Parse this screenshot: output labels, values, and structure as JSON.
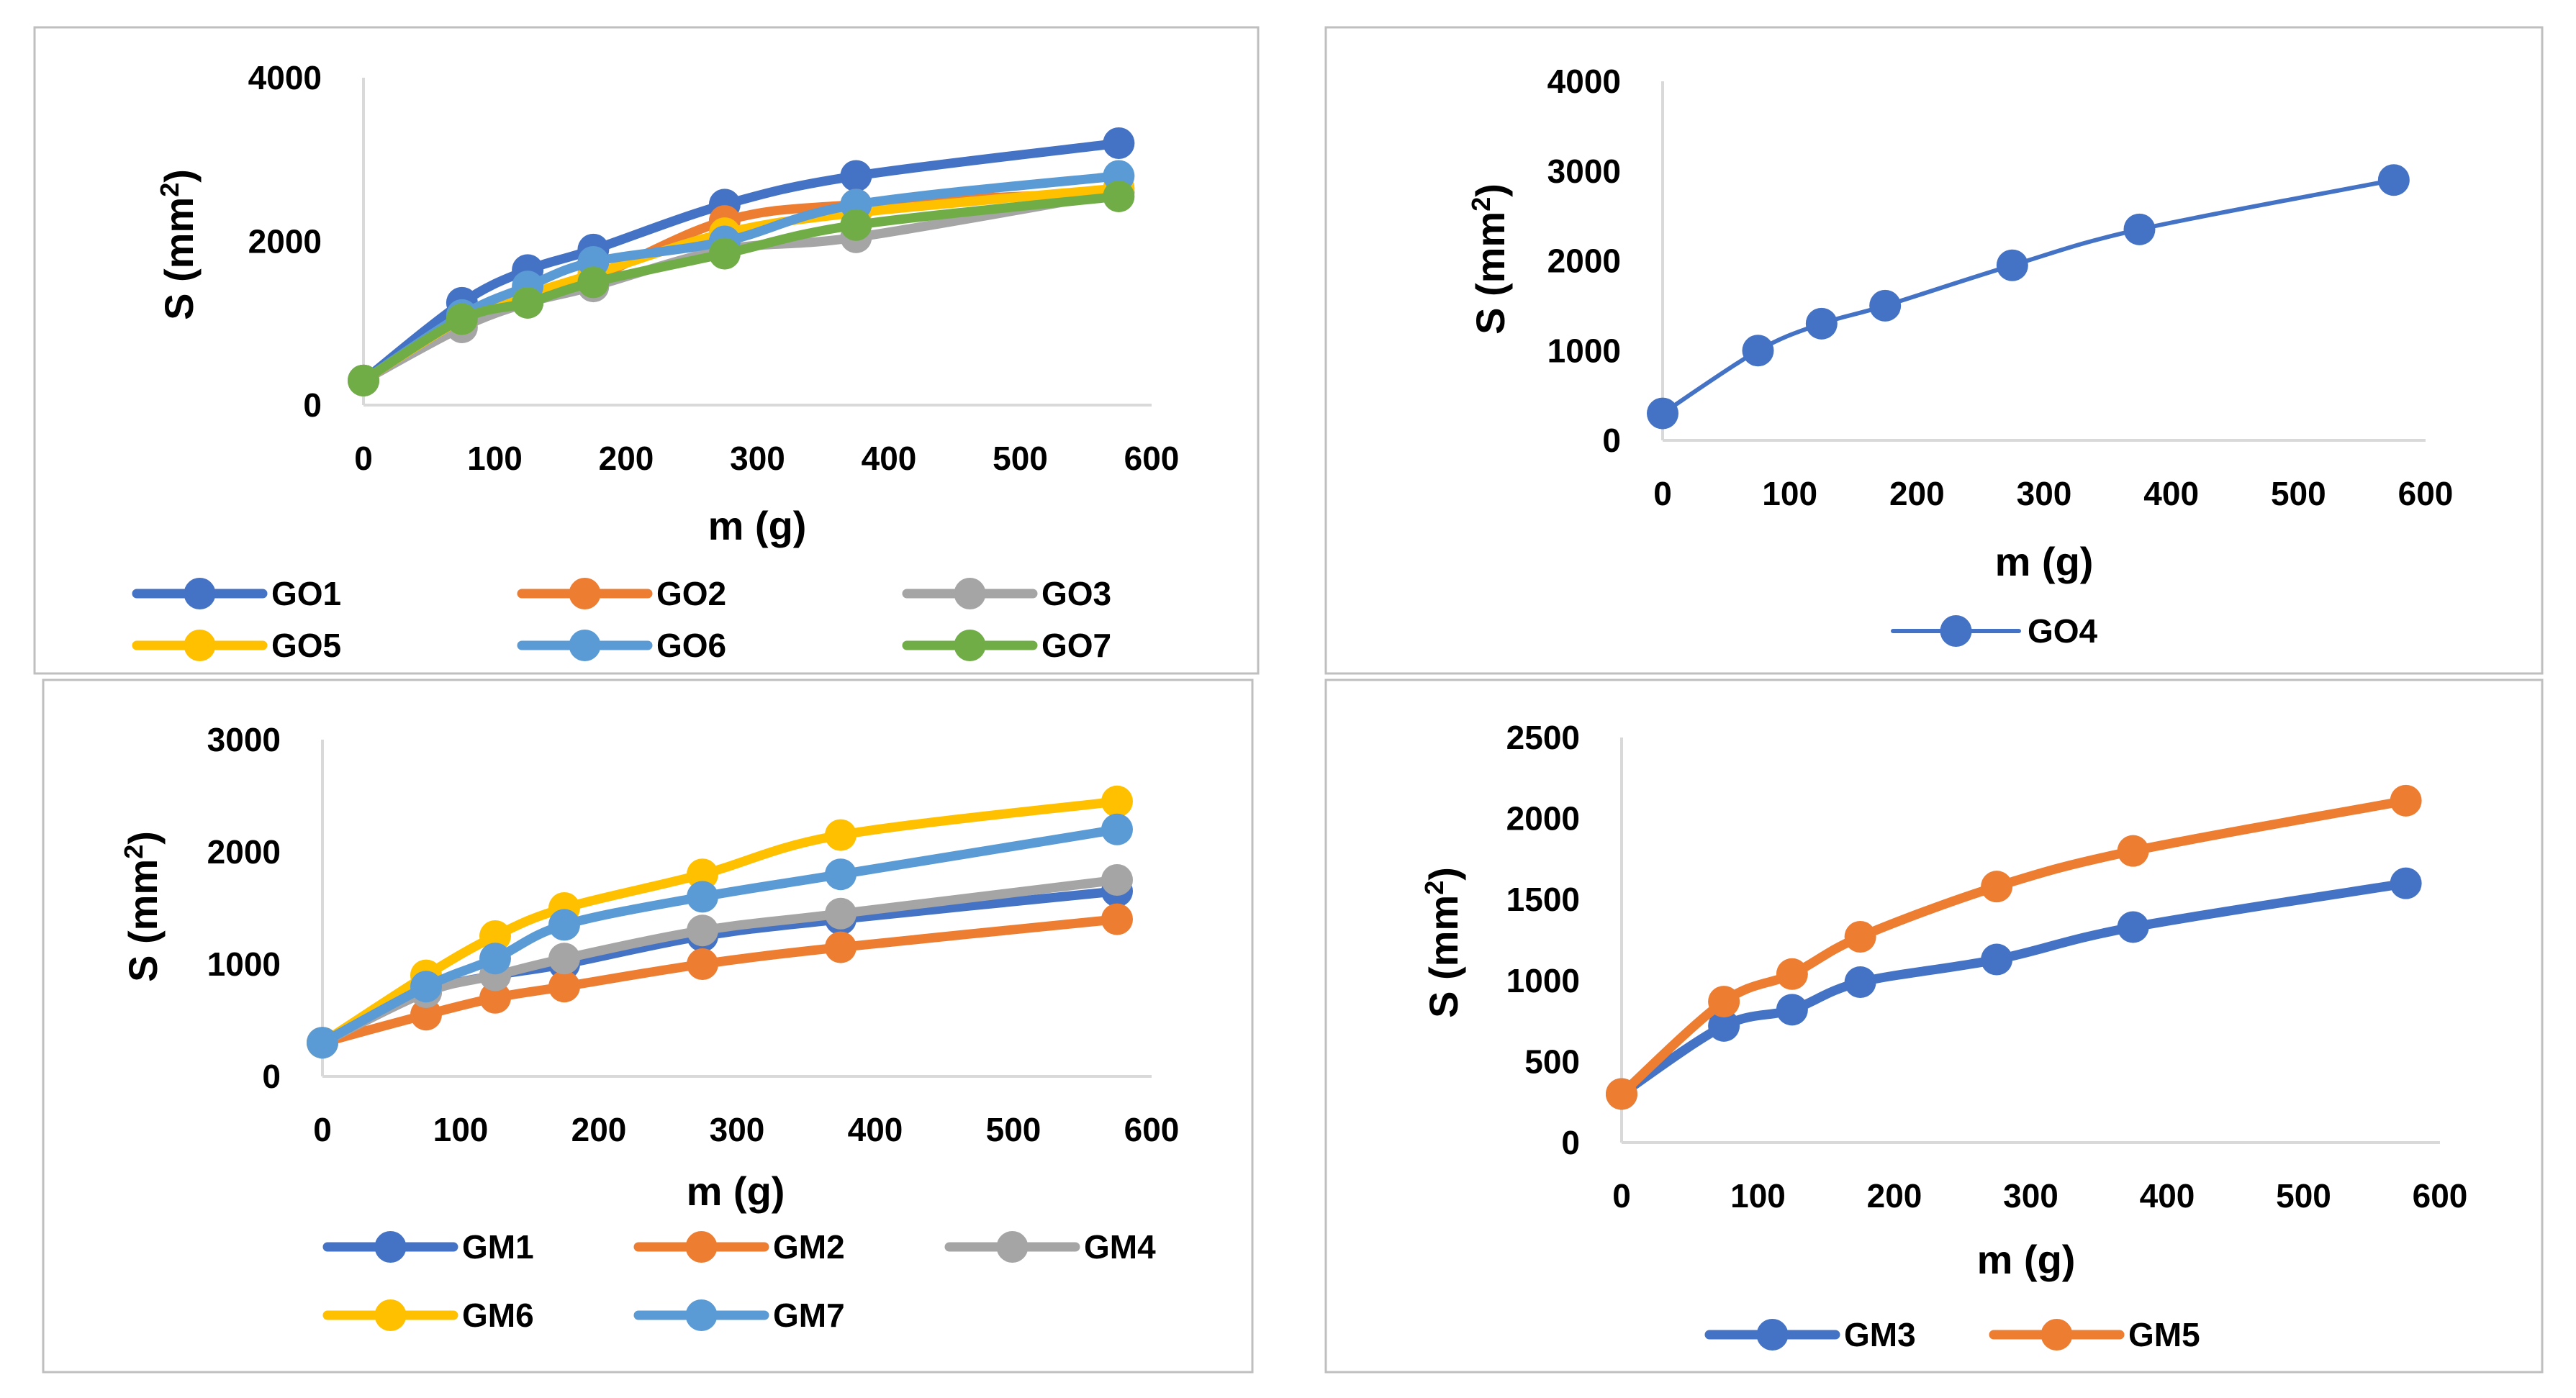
{
  "chart_data": [
    {
      "id": "A",
      "type": "line",
      "title": "",
      "xlabel": "m (g)",
      "ylabel_main": "S (mm",
      "ylabel_sup": "2",
      "ylabel_tail": ")",
      "xlim": [
        0,
        600
      ],
      "ylim": [
        0,
        4000
      ],
      "xticks": [
        0,
        100,
        200,
        300,
        400,
        500,
        600
      ],
      "yticks": [
        0,
        2000,
        4000
      ],
      "grid": false,
      "legend": "bottom",
      "series": [
        {
          "name": "GO1",
          "color": "#4472C4",
          "x": [
            0,
            75,
            125,
            175,
            275,
            375,
            575
          ],
          "y": [
            300,
            1250,
            1650,
            1900,
            2450,
            2800,
            3200
          ]
        },
        {
          "name": "GO2",
          "color": "#ED7D31",
          "x": [
            0,
            75,
            125,
            175,
            275,
            375,
            575
          ],
          "y": [
            300,
            1000,
            1300,
            1550,
            2250,
            2450,
            2600
          ]
        },
        {
          "name": "GO3",
          "color": "#A5A5A5",
          "x": [
            0,
            75,
            125,
            175,
            275,
            375,
            575
          ],
          "y": [
            300,
            950,
            1250,
            1450,
            1900,
            2050,
            2600
          ]
        },
        {
          "name": "GO5",
          "color": "#FFC000",
          "x": [
            0,
            75,
            125,
            175,
            275,
            375,
            575
          ],
          "y": [
            300,
            1050,
            1350,
            1600,
            2100,
            2350,
            2650
          ]
        },
        {
          "name": "GO6",
          "color": "#5B9BD5",
          "x": [
            0,
            75,
            125,
            175,
            275,
            375,
            575
          ],
          "y": [
            300,
            1100,
            1450,
            1750,
            2000,
            2450,
            2800
          ]
        },
        {
          "name": "GO7",
          "color": "#70AD47",
          "x": [
            0,
            75,
            125,
            175,
            275,
            375,
            575
          ],
          "y": [
            300,
            1050,
            1250,
            1500,
            1850,
            2200,
            2550
          ]
        }
      ]
    },
    {
      "id": "B",
      "type": "line",
      "title": "",
      "xlabel": "m (g)",
      "ylabel_main": "S (mm",
      "ylabel_sup": "2",
      "ylabel_tail": ")",
      "xlim": [
        0,
        600
      ],
      "ylim": [
        0,
        4000
      ],
      "xticks": [
        0,
        100,
        200,
        300,
        400,
        500,
        600
      ],
      "yticks": [
        0,
        1000,
        2000,
        3000,
        4000
      ],
      "grid": false,
      "legend": "bottom",
      "series": [
        {
          "name": "GO4",
          "color": "#4472C4",
          "thin": true,
          "x": [
            0,
            75,
            125,
            175,
            275,
            375,
            575
          ],
          "y": [
            300,
            1000,
            1300,
            1500,
            1950,
            2350,
            2900
          ]
        }
      ]
    },
    {
      "id": "C",
      "type": "line",
      "title": "",
      "xlabel": "m (g)",
      "ylabel_main": "S (mm",
      "ylabel_sup": "2",
      "ylabel_tail": ")",
      "xlim": [
        0,
        600
      ],
      "ylim": [
        0,
        3000
      ],
      "xticks": [
        0,
        100,
        200,
        300,
        400,
        500,
        600
      ],
      "yticks": [
        0,
        1000,
        2000,
        3000
      ],
      "grid": false,
      "legend": "bottom",
      "series": [
        {
          "name": "GM1",
          "color": "#4472C4",
          "x": [
            0,
            75,
            125,
            175,
            275,
            375,
            575
          ],
          "y": [
            300,
            750,
            900,
            1000,
            1250,
            1400,
            1650
          ]
        },
        {
          "name": "GM2",
          "color": "#ED7D31",
          "x": [
            0,
            75,
            125,
            175,
            275,
            375,
            575
          ],
          "y": [
            300,
            550,
            700,
            800,
            1000,
            1150,
            1400
          ]
        },
        {
          "name": "GM4",
          "color": "#A5A5A5",
          "x": [
            0,
            75,
            125,
            175,
            275,
            375,
            575
          ],
          "y": [
            300,
            750,
            900,
            1050,
            1300,
            1450,
            1750
          ]
        },
        {
          "name": "GM6",
          "color": "#FFC000",
          "x": [
            0,
            75,
            125,
            175,
            275,
            375,
            575
          ],
          "y": [
            300,
            900,
            1250,
            1500,
            1800,
            2150,
            2450
          ]
        },
        {
          "name": "GM7",
          "color": "#5B9BD5",
          "x": [
            0,
            75,
            125,
            175,
            275,
            375,
            575
          ],
          "y": [
            300,
            800,
            1050,
            1350,
            1600,
            1800,
            2200
          ]
        }
      ]
    },
    {
      "id": "D",
      "type": "line",
      "title": "",
      "xlabel": "m (g)",
      "ylabel_main": "S (mm",
      "ylabel_sup": "2",
      "ylabel_tail": ")",
      "xlim": [
        0,
        600
      ],
      "ylim": [
        0,
        2500
      ],
      "xticks": [
        0,
        100,
        200,
        300,
        400,
        500,
        600
      ],
      "yticks": [
        0,
        500,
        1000,
        1500,
        2000,
        2500
      ],
      "grid": false,
      "legend": "bottom",
      "series": [
        {
          "name": "GM3",
          "color": "#4472C4",
          "x": [
            0,
            75,
            125,
            175,
            275,
            375,
            575
          ],
          "y": [
            300,
            720,
            820,
            990,
            1130,
            1330,
            1600
          ]
        },
        {
          "name": "GM5",
          "color": "#ED7D31",
          "x": [
            0,
            75,
            125,
            175,
            275,
            375,
            575
          ],
          "y": [
            300,
            870,
            1040,
            1270,
            1580,
            1800,
            2110
          ]
        }
      ]
    }
  ]
}
